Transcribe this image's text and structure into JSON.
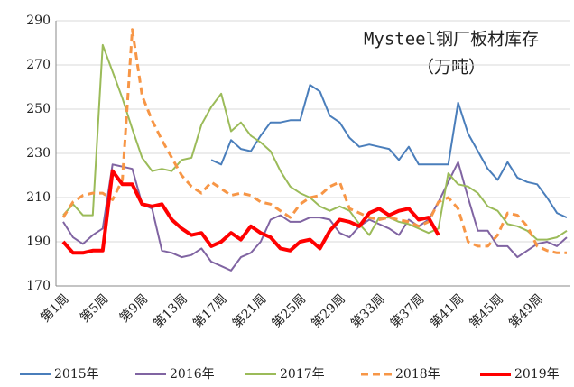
{
  "chart_data": {
    "type": "line",
    "title": "Mysteel钢厂板材库存",
    "subtitle": "（万吨）",
    "categories": [
      "第1周",
      null,
      null,
      null,
      "第5周",
      null,
      null,
      null,
      "第9周",
      null,
      null,
      null,
      "第13周",
      null,
      null,
      null,
      "第17周",
      null,
      null,
      null,
      "第21周",
      null,
      null,
      null,
      "第25周",
      null,
      null,
      null,
      "第29周",
      null,
      null,
      null,
      "第33周",
      null,
      null,
      null,
      "第37周",
      null,
      null,
      null,
      "第41周",
      null,
      null,
      null,
      "第45周",
      null,
      null,
      null,
      "第49周",
      null,
      null,
      null
    ],
    "ylim": [
      170,
      290
    ],
    "yticks": [
      170,
      190,
      210,
      230,
      250,
      270,
      290
    ],
    "grid": true,
    "legend": "bottom",
    "series": [
      {
        "name": "2015年",
        "color": "#4a7ebb",
        "width": 2,
        "dashed": false,
        "values": [
          null,
          null,
          null,
          null,
          null,
          null,
          null,
          null,
          null,
          null,
          null,
          null,
          null,
          null,
          null,
          227,
          225,
          236,
          232,
          231,
          238,
          244,
          244,
          245,
          245,
          261,
          258,
          247,
          244,
          237,
          233,
          234,
          233,
          232,
          227,
          233,
          225,
          225,
          225,
          225,
          253,
          239,
          231,
          223,
          218,
          226,
          219,
          217,
          216,
          210,
          203,
          201
        ]
      },
      {
        "name": "2016年",
        "color": "#8064a2",
        "width": 2,
        "dashed": false,
        "values": [
          199,
          192,
          189,
          193,
          196,
          225,
          224,
          223,
          207,
          205,
          186,
          185,
          183,
          184,
          187,
          181,
          179,
          177,
          183,
          185,
          190,
          200,
          202,
          199,
          199,
          201,
          201,
          200,
          194,
          192,
          197,
          200,
          198,
          196,
          193,
          200,
          197,
          200,
          208,
          217,
          226,
          210,
          195,
          195,
          188,
          188,
          183,
          186,
          189,
          190,
          188,
          192
        ]
      },
      {
        "name": "2017年",
        "color": "#9bbb59",
        "width": 2,
        "dashed": false,
        "values": [
          202,
          207,
          202,
          202,
          279,
          267,
          255,
          241,
          228,
          222,
          223,
          222,
          227,
          228,
          243,
          251,
          257,
          240,
          244,
          238,
          235,
          231,
          222,
          215,
          212,
          210,
          206,
          204,
          206,
          204,
          198,
          193,
          201,
          201,
          199,
          198,
          196,
          194,
          196,
          221,
          216,
          215,
          212,
          206,
          204,
          198,
          197,
          195,
          191,
          191,
          192,
          195
        ]
      },
      {
        "name": "2018年",
        "color": "#f79646",
        "width": 3,
        "dashed": true,
        "values": [
          201,
          208,
          211,
          212,
          212,
          209,
          218,
          286,
          256,
          245,
          236,
          228,
          220,
          215,
          212,
          217,
          214,
          211,
          212,
          211,
          208,
          207,
          204,
          201,
          207,
          210,
          211,
          215,
          217,
          205,
          203,
          201,
          200,
          201,
          200,
          199,
          197,
          199,
          208,
          210,
          205,
          190,
          188,
          188,
          193,
          203,
          202,
          197,
          188,
          186,
          185,
          185
        ]
      },
      {
        "name": "2019年",
        "color": "#ff0000",
        "width": 4,
        "dashed": false,
        "values": [
          190,
          185,
          185,
          186,
          186,
          222,
          216,
          216,
          207,
          206,
          207,
          200,
          196,
          193,
          194,
          188,
          190,
          194,
          191,
          197,
          194,
          192,
          187,
          186,
          190,
          191,
          187,
          195,
          200,
          199,
          197,
          203,
          205,
          202,
          204,
          205,
          200,
          201,
          193,
          null,
          null,
          null,
          null,
          null,
          null,
          null,
          null,
          null,
          null,
          null,
          null,
          null
        ]
      }
    ]
  }
}
